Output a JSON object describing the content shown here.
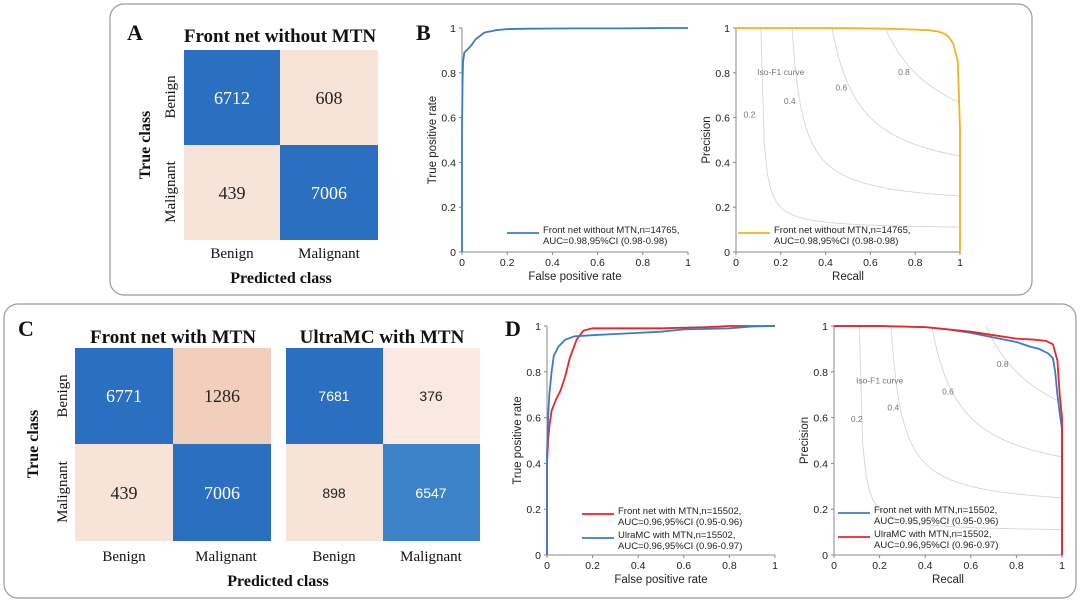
{
  "panel_labels": [
    "A",
    "B",
    "C",
    "D"
  ],
  "confusion_common": {
    "ylabel": "True class",
    "xlabel": "Predicted class",
    "row_labels": [
      "Benign",
      "Malignant"
    ],
    "col_labels": [
      "Benign",
      "Malignant"
    ]
  },
  "iso_f1": {
    "label": "Iso-F1 curve",
    "values": [
      0.2,
      0.4,
      0.6,
      0.8
    ]
  },
  "chart_data": [
    {
      "id": "A",
      "type": "heatmap",
      "title": "Front net without MTN",
      "xlabel": "Predicted class",
      "ylabel": "True class",
      "row_labels": [
        "Benign",
        "Malignant"
      ],
      "col_labels": [
        "Benign",
        "Malignant"
      ],
      "matrix": [
        [
          6712,
          608
        ],
        [
          439,
          7006
        ]
      ],
      "colors": [
        [
          "#2b70c0",
          "#f8e3d8"
        ],
        [
          "#f8e3d8",
          "#2b70c0"
        ]
      ],
      "text_colors": [
        [
          "#ffffff",
          "#222222"
        ],
        [
          "#222222",
          "#ffffff"
        ]
      ]
    },
    {
      "id": "B-roc",
      "type": "line",
      "xlabel": "False positive rate",
      "ylabel": "True positive rate",
      "xlim": [
        0,
        1
      ],
      "ylim": [
        0,
        1
      ],
      "xticks": [
        "0",
        "0.2",
        "0.4",
        "0.6",
        "0.8",
        "1"
      ],
      "yticks": [
        "0",
        "0.2",
        "0.4",
        "0.6",
        "0.8",
        "1"
      ],
      "series": [
        {
          "name": "Front net without MTN",
          "legend": [
            "Front net without MTN,n=14765,",
            "AUC=0.98,95%CI (0.98-0.98)"
          ],
          "color": "#3c7cc4",
          "x": [
            0,
            0,
            0.002,
            0.005,
            0.01,
            0.02,
            0.04,
            0.06,
            0.1,
            0.15,
            0.2,
            0.3,
            0.5,
            0.7,
            0.8,
            0.9,
            1.0
          ],
          "y": [
            0,
            0.55,
            0.75,
            0.85,
            0.89,
            0.9,
            0.92,
            0.95,
            0.98,
            0.99,
            0.995,
            0.997,
            0.998,
            0.998,
            0.999,
            1.0,
            1.0
          ]
        }
      ]
    },
    {
      "id": "B-pr",
      "type": "line",
      "xlabel": "Recall",
      "ylabel": "Precision",
      "xlim": [
        0,
        1
      ],
      "ylim": [
        0,
        1
      ],
      "xticks": [
        "0",
        "0.2",
        "0.4",
        "0.6",
        "0.8",
        "1"
      ],
      "yticks": [
        "0",
        "0.2",
        "0.4",
        "0.6",
        "0.8",
        "1"
      ],
      "series": [
        {
          "name": "Front net without MTN",
          "legend": [
            "Front net without MTN,n=14765,",
            "AUC=0.98,95%CI (0.98-0.98)"
          ],
          "color": "#f0b323",
          "x": [
            0,
            0.2,
            0.4,
            0.6,
            0.7,
            0.8,
            0.86,
            0.9,
            0.93,
            0.95,
            0.97,
            0.99,
            1.0,
            1.0
          ],
          "y": [
            1.0,
            1.0,
            1.0,
            0.998,
            0.996,
            0.993,
            0.99,
            0.985,
            0.975,
            0.96,
            0.93,
            0.85,
            0.55,
            0
          ]
        }
      ]
    },
    {
      "id": "C-1",
      "type": "heatmap",
      "title": "Front net with MTN",
      "xlabel": "Predicted class",
      "ylabel": "True class",
      "row_labels": [
        "Benign",
        "Malignant"
      ],
      "col_labels": [
        "Benign",
        "Malignant"
      ],
      "matrix": [
        [
          6771,
          1286
        ],
        [
          439,
          7006
        ]
      ],
      "colors": [
        [
          "#2b70c0",
          "#f1cfbc"
        ],
        [
          "#f8e3d8",
          "#2b70c0"
        ]
      ],
      "text_colors": [
        [
          "#ffffff",
          "#222222"
        ],
        [
          "#222222",
          "#ffffff"
        ]
      ]
    },
    {
      "id": "C-2",
      "type": "heatmap",
      "title": "UltraMC with MTN",
      "xlabel": "Predicted class",
      "ylabel": "True class",
      "row_labels": [
        "Benign",
        "Malignant"
      ],
      "col_labels": [
        "Benign",
        "Malignant"
      ],
      "matrix": [
        [
          7681,
          376
        ],
        [
          898,
          6547
        ]
      ],
      "colors": [
        [
          "#2b70c0",
          "#fae9e0"
        ],
        [
          "#f8e3d8",
          "#3c82c8"
        ]
      ],
      "text_colors": [
        [
          "#ffffff",
          "#222222"
        ],
        [
          "#222222",
          "#ffffff"
        ]
      ]
    },
    {
      "id": "D-roc",
      "type": "line",
      "xlabel": "False positive rate",
      "ylabel": "True positive rate",
      "xlim": [
        0,
        1
      ],
      "ylim": [
        0,
        1
      ],
      "xticks": [
        "0",
        "0.2",
        "0.4",
        "0.6",
        "0.8",
        "1"
      ],
      "yticks": [
        "0",
        "0.2",
        "0.4",
        "0.6",
        "0.8",
        "1"
      ],
      "series": [
        {
          "name": "Front net with MTN",
          "legend": [
            "Front net with MTN,n=15502,",
            "AUC=0.96,95%CI (0.95-0.96)"
          ],
          "color": "#e8262b",
          "x": [
            0,
            0,
            0.005,
            0.01,
            0.02,
            0.04,
            0.06,
            0.08,
            0.1,
            0.13,
            0.16,
            0.2,
            0.3,
            0.5,
            0.7,
            0.8,
            1.0
          ],
          "y": [
            0,
            0.4,
            0.5,
            0.56,
            0.63,
            0.68,
            0.72,
            0.78,
            0.86,
            0.94,
            0.98,
            0.99,
            0.99,
            0.99,
            0.995,
            1.0,
            1.0
          ]
        },
        {
          "name": "UlraMC with MTN",
          "legend": [
            "UlraMC with MTN,n=15502,",
            "AUC=0.96,95%CI (0.96-0.97)"
          ],
          "color": "#3c7cc4",
          "x": [
            0,
            0,
            0.005,
            0.01,
            0.02,
            0.03,
            0.05,
            0.08,
            0.12,
            0.2,
            0.3,
            0.4,
            0.5,
            0.6,
            0.8,
            0.9,
            1.0
          ],
          "y": [
            0,
            0.45,
            0.6,
            0.7,
            0.8,
            0.87,
            0.91,
            0.94,
            0.955,
            0.96,
            0.965,
            0.97,
            0.975,
            0.985,
            0.99,
            0.998,
            1.0
          ]
        }
      ]
    },
    {
      "id": "D-pr",
      "type": "line",
      "xlabel": "Recall",
      "ylabel": "Precision",
      "xlim": [
        0,
        1
      ],
      "ylim": [
        0,
        1
      ],
      "xticks": [
        "0",
        "0.2",
        "0.4",
        "0.6",
        "0.8",
        "1"
      ],
      "yticks": [
        "0",
        "0.2",
        "0.4",
        "0.6",
        "0.8",
        "1"
      ],
      "series": [
        {
          "name": "Front net with MTN",
          "legend": [
            "Front net with MTN,n=15502,",
            "AUC=0.95,95%CI (0.95-0.96)"
          ],
          "color": "#3c7cc4",
          "x": [
            0,
            0.2,
            0.4,
            0.5,
            0.6,
            0.7,
            0.8,
            0.86,
            0.9,
            0.94,
            0.96,
            0.97,
            0.98,
            0.99,
            1.0,
            1.0
          ],
          "y": [
            1.0,
            1.0,
            0.995,
            0.985,
            0.97,
            0.95,
            0.93,
            0.91,
            0.9,
            0.88,
            0.86,
            0.8,
            0.7,
            0.62,
            0.55,
            0
          ]
        },
        {
          "name": "UlraMC with MTN",
          "legend": [
            "UlraMC with MTN,n=15502,",
            "AUC=0.96,95%CI (0.96-0.97)"
          ],
          "color": "#e8262b",
          "x": [
            0,
            0.2,
            0.4,
            0.5,
            0.6,
            0.7,
            0.8,
            0.88,
            0.93,
            0.96,
            0.98,
            0.99,
            1.0,
            1.0
          ],
          "y": [
            1.0,
            1.0,
            0.995,
            0.985,
            0.975,
            0.96,
            0.945,
            0.94,
            0.935,
            0.92,
            0.85,
            0.7,
            0.6,
            0
          ]
        }
      ]
    }
  ]
}
